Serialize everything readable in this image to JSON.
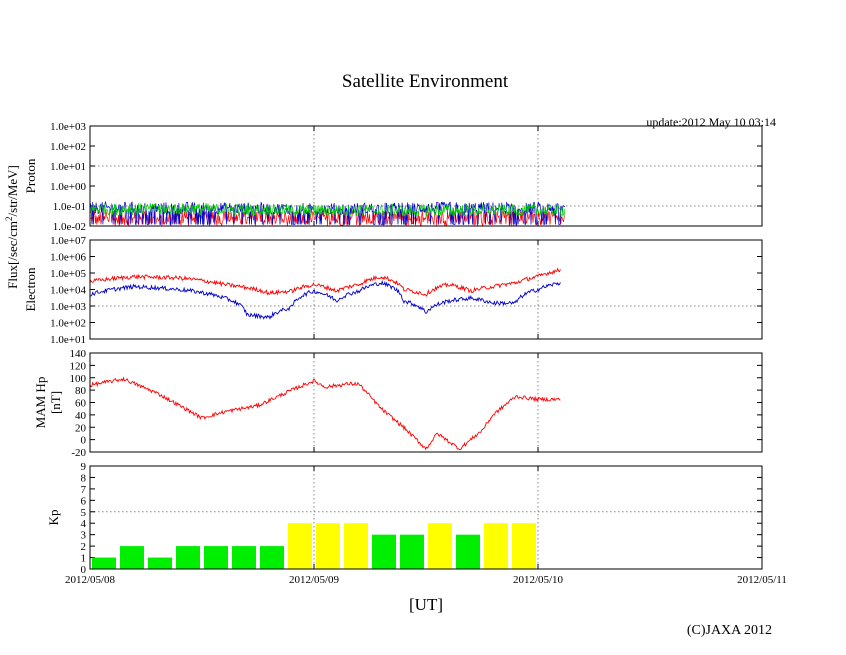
{
  "chart_data": {
    "type": "line",
    "title": "Satellite Environment",
    "update": "update:2012 May 10 03:14",
    "xlabel": "[UT]",
    "copyright": "(C)JAXA 2012",
    "xlim": [
      "2012/05/08",
      "2012/05/11"
    ],
    "x_ticks": [
      "2012/05/08",
      "2012/05/09",
      "2012/05/10",
      "2012/05/11"
    ],
    "shared_ylabel": "Flux[/sec/cm²/str/MeV]",
    "series_colors": {
      "red": "#ff0000",
      "blue": "#0000cc",
      "green": "#00cc00",
      "yellow": "#ffff00"
    },
    "panels": [
      {
        "id": "proton",
        "ylabel": "Proton",
        "scale": "log",
        "ylim": [
          0.01,
          1000
        ],
        "y_ticks": [
          "1.0e-02",
          "1.0e-01",
          "1.0e+00",
          "1.0e+01",
          "1.0e+02",
          "1.0e+03"
        ],
        "series": [
          {
            "color": "#ff0000",
            "x_days": [
              0.0,
              0.5,
              1.0,
              1.5,
              2.12
            ],
            "values": [
              0.02,
              0.02,
              0.02,
              0.02,
              0.02
            ]
          },
          {
            "color": "#0000cc",
            "x_days": [
              0.0,
              0.5,
              1.0,
              1.5,
              2.12
            ],
            "values": [
              0.08,
              0.08,
              0.07,
              0.08,
              0.08
            ]
          },
          {
            "color": "#00cc00",
            "x_days": [
              0.0,
              0.5,
              1.0,
              1.5,
              2.12
            ],
            "values": [
              0.07,
              0.07,
              0.06,
              0.06,
              0.06
            ]
          }
        ]
      },
      {
        "id": "electron",
        "ylabel": "Electron",
        "scale": "log",
        "ylim": [
          10,
          10000000
        ],
        "y_ticks": [
          "1.0e+01",
          "1.0e+02",
          "1.0e+03",
          "1.0e+04",
          "1.0e+05",
          "1.0e+06",
          "1.0e+07"
        ],
        "series": [
          {
            "color": "#ff0000",
            "x_days": [
              0.0,
              0.2,
              0.4,
              0.6,
              0.8,
              0.9,
              1.0,
              1.1,
              1.2,
              1.3,
              1.4,
              1.5,
              1.6,
              1.7,
              1.8,
              1.9,
              2.0,
              2.1
            ],
            "values": [
              30000,
              60000,
              50000,
              20000,
              6000,
              8000,
              20000,
              8000,
              20000,
              60000,
              10000,
              5000,
              20000,
              8000,
              15000,
              25000,
              60000,
              150000
            ]
          },
          {
            "color": "#0000cc",
            "x_days": [
              0.0,
              0.2,
              0.4,
              0.6,
              0.7,
              0.8,
              0.9,
              1.0,
              1.1,
              1.2,
              1.3,
              1.4,
              1.5,
              1.6,
              1.7,
              1.8,
              1.9,
              2.0,
              2.1
            ],
            "values": [
              5000,
              15000,
              10000,
              3000,
              300,
              200,
              800,
              8000,
              2000,
              8000,
              25000,
              2000,
              400,
              2000,
              3000,
              1500,
              1500,
              10000,
              25000
            ]
          }
        ]
      },
      {
        "id": "mam",
        "ylabel": "MAM Hp",
        "ylabel2": "[nT]",
        "scale": "linear",
        "ylim": [
          -20,
          140
        ],
        "y_ticks": [
          "-20",
          "0",
          "20",
          "40",
          "60",
          "80",
          "100",
          "120",
          "140"
        ],
        "series": [
          {
            "color": "#ff0000",
            "x_days": [
              0.0,
              0.15,
              0.3,
              0.45,
              0.5,
              0.6,
              0.75,
              0.9,
              1.0,
              1.05,
              1.15,
              1.2,
              1.3,
              1.4,
              1.5,
              1.55,
              1.65,
              1.75,
              1.8,
              1.9,
              2.0,
              2.1
            ],
            "values": [
              88,
              98,
              75,
              45,
              35,
              45,
              55,
              80,
              95,
              85,
              90,
              90,
              50,
              20,
              -15,
              10,
              -15,
              15,
              40,
              70,
              65,
              65
            ]
          }
        ]
      },
      {
        "id": "kp",
        "ylabel": "Kp",
        "type": "bar",
        "scale": "linear",
        "ylim": [
          0,
          9
        ],
        "y_ticks": [
          "0",
          "1",
          "2",
          "3",
          "4",
          "5",
          "6",
          "7",
          "8",
          "9"
        ],
        "bar_width_days": 0.125,
        "bars": [
          {
            "start_day": 0.0,
            "value": 1,
            "color": "#00ee00"
          },
          {
            "start_day": 0.125,
            "value": 2,
            "color": "#00ee00"
          },
          {
            "start_day": 0.25,
            "value": 1,
            "color": "#00ee00"
          },
          {
            "start_day": 0.375,
            "value": 2,
            "color": "#00ee00"
          },
          {
            "start_day": 0.5,
            "value": 2,
            "color": "#00ee00"
          },
          {
            "start_day": 0.625,
            "value": 2,
            "color": "#00ee00"
          },
          {
            "start_day": 0.75,
            "value": 2,
            "color": "#00ee00"
          },
          {
            "start_day": 0.875,
            "value": 4,
            "color": "#ffff00"
          },
          {
            "start_day": 1.0,
            "value": 4,
            "color": "#ffff00"
          },
          {
            "start_day": 1.125,
            "value": 4,
            "color": "#ffff00"
          },
          {
            "start_day": 1.25,
            "value": 3,
            "color": "#00ee00"
          },
          {
            "start_day": 1.375,
            "value": 3,
            "color": "#00ee00"
          },
          {
            "start_day": 1.5,
            "value": 4,
            "color": "#ffff00"
          },
          {
            "start_day": 1.625,
            "value": 3,
            "color": "#00ee00"
          },
          {
            "start_day": 1.75,
            "value": 4,
            "color": "#ffff00"
          },
          {
            "start_day": 1.875,
            "value": 4,
            "color": "#ffff00"
          }
        ]
      }
    ]
  }
}
